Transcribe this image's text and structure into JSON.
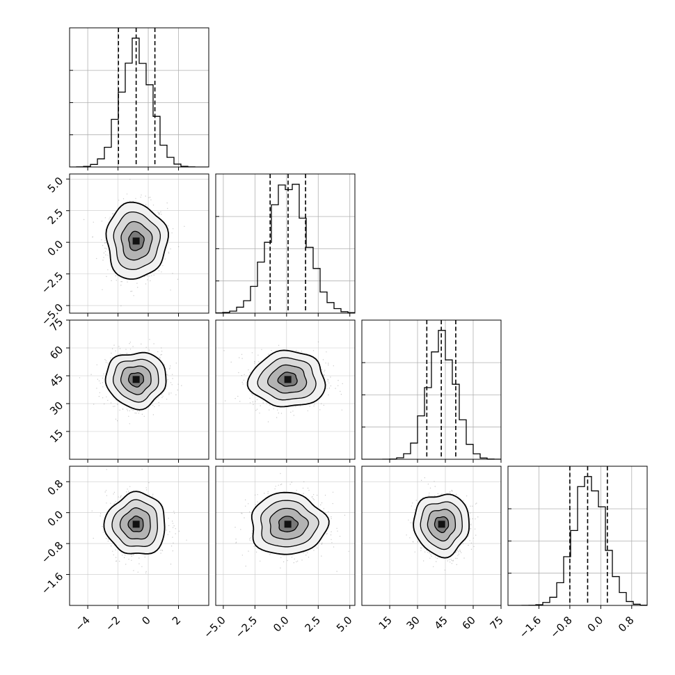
{
  "chart_data": {
    "type": "corner",
    "title": "",
    "parameters": [
      {
        "label": "",
        "range": [
          -5.2,
          4.0
        ],
        "ticks": [
          -4,
          -2,
          0,
          2
        ],
        "tick_labels": [
          "−4",
          "−2",
          "0",
          "2"
        ],
        "mean": -0.8,
        "sigma": 1.0,
        "quantiles": [
          -1.97,
          -0.8,
          0.44
        ]
      },
      {
        "label": "",
        "range": [
          -5.6,
          5.4
        ],
        "ticks": [
          -5.0,
          -2.5,
          0.0,
          2.5,
          5.0
        ],
        "tick_labels": [
          "−5.0",
          "−2.5",
          "0.0",
          "2.5",
          "5.0"
        ],
        "mean": 0.1,
        "sigma": 1.5,
        "quantiles": [
          -1.3,
          0.12,
          1.5
        ]
      },
      {
        "label": "",
        "range": [
          0,
          75
        ],
        "ticks": [
          15,
          30,
          45,
          60,
          75
        ],
        "tick_labels": [
          "15",
          "30",
          "45",
          "60",
          "75"
        ],
        "mean": 43,
        "sigma": 7.5,
        "quantiles": [
          35.0,
          42.8,
          50.6
        ]
      },
      {
        "label": "",
        "range": [
          -2.4,
          1.2
        ],
        "ticks": [
          -1.6,
          -0.8,
          0.0,
          0.8
        ],
        "tick_labels": [
          "−1.6",
          "−0.8",
          "0.0",
          "0.8"
        ],
        "mean": -0.3,
        "sigma": 0.4,
        "quantiles": [
          -0.8,
          -0.34,
          0.17
        ]
      }
    ],
    "histogram_bins": 20,
    "contour_levels_sigma": [
      0.5,
      1.0,
      1.5,
      2.0
    ],
    "grid": true,
    "quantile_line_style": "dashed"
  }
}
